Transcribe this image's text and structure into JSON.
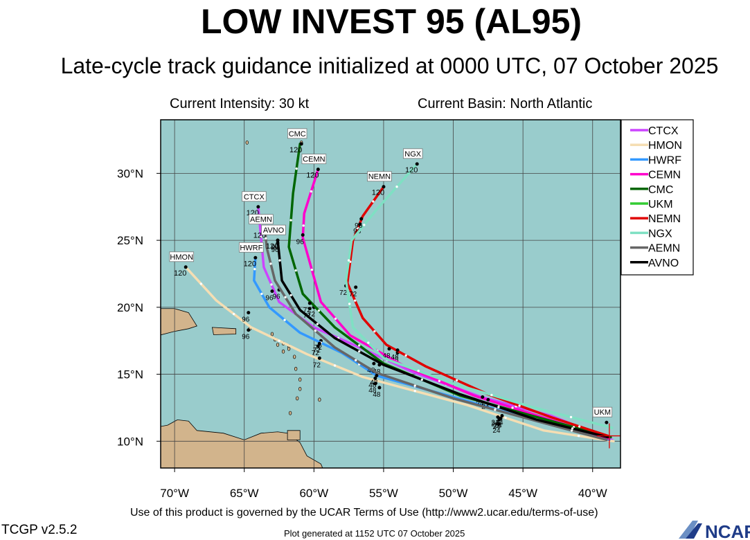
{
  "header": {
    "title": "LOW INVEST 95 (AL95)",
    "subtitle": "Late-cycle track guidance initialized at 0000 UTC, 07 October 2025",
    "intensity": "Current Intensity: 30 kt",
    "basin": "Current Basin: North Atlantic"
  },
  "footer": {
    "terms": "Use of this product is governed by the UCAR Terms of Use (http://www2.ucar.edu/terms-of-use)",
    "version": "TCGP v2.5.2",
    "generated": "Plot generated at 1152 UTC   07 October 2025",
    "logo_text": "NCAR"
  },
  "map": {
    "lon_range": [
      -71,
      -38
    ],
    "lat_range": [
      8,
      34
    ],
    "ocean_color": "#99cccc",
    "land_color": "#d2b48c",
    "lon_ticks": [
      -70,
      -65,
      -60,
      -55,
      -50,
      -45,
      -40
    ],
    "lon_labels": [
      "70°W",
      "65°W",
      "60°W",
      "55°W",
      "50°W",
      "45°W",
      "40°W"
    ],
    "lat_ticks": [
      10,
      15,
      20,
      25,
      30
    ],
    "lat_labels": [
      "10°N",
      "15°N",
      "20°N",
      "25°N",
      "30°N"
    ],
    "current_position": [
      -38.8,
      10.4
    ]
  },
  "chart_data": {
    "type": "line",
    "xlabel": "",
    "ylabel": "",
    "series": [
      {
        "name": "CTCX",
        "color": "#cc44ff",
        "points": [
          [
            -38.6,
            10.1
          ],
          [
            -43,
            11.9
          ],
          [
            -48,
            13.3
          ],
          [
            -53,
            15.2
          ],
          [
            -56.5,
            16.9
          ],
          [
            -60,
            18.5
          ],
          [
            -62.5,
            20.4
          ],
          [
            -63.6,
            23.0
          ],
          [
            -64.0,
            27.5
          ]
        ],
        "labels": [
          [
            "24",
            -46.8,
            11.9
          ],
          [
            "48",
            -54,
            16.6
          ],
          [
            "72",
            -59.5,
            17.5
          ],
          [
            "96",
            -62.5,
            21.3
          ]
        ]
      },
      {
        "name": "HMON",
        "color": "#f5deb3",
        "points": [
          [
            -38.5,
            10.0
          ],
          [
            -43.5,
            10.8
          ],
          [
            -49,
            12.7
          ],
          [
            -56.5,
            14.8
          ],
          [
            -60.5,
            16.5
          ],
          [
            -64.5,
            18.5
          ],
          [
            -67,
            20.5
          ],
          [
            -69.2,
            23.0
          ]
        ],
        "labels": [
          [
            "24",
            -46.7,
            11.3
          ],
          [
            "48",
            -55.3,
            14.0
          ],
          [
            "72",
            -59.6,
            16.2
          ],
          [
            "96",
            -64.7,
            18.3
          ]
        ]
      },
      {
        "name": "HWRF",
        "color": "#3399ff",
        "points": [
          [
            -38.8,
            10.1
          ],
          [
            -44,
            11.5
          ],
          [
            -50,
            13.3
          ],
          [
            -55.5,
            14.9
          ],
          [
            -58,
            16.6
          ],
          [
            -61,
            18.1
          ],
          [
            -63.2,
            20.0
          ],
          [
            -64.3,
            22.0
          ],
          [
            -64.2,
            23.7
          ]
        ],
        "labels": [
          [
            "24",
            -46.8,
            11.8
          ],
          [
            "48",
            -55.6,
            14.3
          ],
          [
            "72",
            -59.7,
            17.1
          ],
          [
            "96",
            -64.7,
            19.6
          ]
        ]
      },
      {
        "name": "CEMN",
        "color": "#ff00cc",
        "points": [
          [
            -38.9,
            10.2
          ],
          [
            -43,
            11.6
          ],
          [
            -48.5,
            13.4
          ],
          [
            -53.5,
            15.6
          ],
          [
            -57.4,
            17.9
          ],
          [
            -59.5,
            20.4
          ],
          [
            -60.8,
            25.2
          ],
          [
            -60.7,
            27.0
          ],
          [
            -59.7,
            30.3
          ]
        ],
        "labels": [
          [
            "24",
            -46.7,
            11.6
          ],
          [
            "48",
            -55.3,
            15.7
          ],
          [
            "72",
            -60.0,
            20.0
          ],
          [
            "96",
            -60.8,
            25.4
          ]
        ]
      },
      {
        "name": "CMC",
        "color": "#006600",
        "points": [
          [
            -38.7,
            10.3
          ],
          [
            -44,
            11.8
          ],
          [
            -49.5,
            13.4
          ],
          [
            -55,
            15.8
          ],
          [
            -58.5,
            18.5
          ],
          [
            -60.8,
            21.0
          ],
          [
            -61.8,
            24.5
          ],
          [
            -61.5,
            28.5
          ],
          [
            -61.0,
            32.2
          ]
        ],
        "labels": [
          [
            "24",
            -46.6,
            11.7
          ],
          [
            "48",
            -55.7,
            15.8
          ],
          [
            "72",
            -60.3,
            20.3
          ],
          [
            "96",
            -62.6,
            24.8
          ]
        ]
      },
      {
        "name": "UKM",
        "color": "#33cc33",
        "points": [
          [
            -39.0,
            11.4
          ]
        ],
        "labels": []
      },
      {
        "name": "NEMN",
        "color": "#e00000",
        "points": [
          [
            -38.9,
            10.4
          ],
          [
            -43,
            11.8
          ],
          [
            -47.5,
            13.5
          ],
          [
            -52,
            15.6
          ],
          [
            -54.8,
            17.2
          ],
          [
            -56.5,
            19.2
          ],
          [
            -57.6,
            21.8
          ],
          [
            -57.2,
            25.0
          ],
          [
            -56.5,
            26.8
          ],
          [
            -55.0,
            29.0
          ]
        ],
        "labels": [
          [
            "24",
            -47.9,
            13.3
          ],
          [
            "48",
            -54.6,
            16.9
          ],
          [
            "72",
            -57.7,
            21.6
          ],
          [
            "96",
            -56.7,
            26.2
          ]
        ]
      },
      {
        "name": "NGX",
        "color": "#7fe0c3",
        "points": [
          [
            -38.6,
            11.0
          ],
          [
            -44.5,
            12.6
          ],
          [
            -50,
            14.3
          ],
          [
            -55,
            16.2
          ],
          [
            -57.2,
            18.5
          ],
          [
            -57.7,
            22.0
          ],
          [
            -57.3,
            25.0
          ],
          [
            -55.5,
            27.3
          ],
          [
            -52.6,
            30.7
          ]
        ],
        "labels": [
          [
            "24",
            -47.5,
            13.1
          ],
          [
            "48",
            -54.0,
            16.8
          ],
          [
            "72",
            -57.0,
            21.5
          ],
          [
            "96",
            -56.6,
            26.6
          ]
        ]
      },
      {
        "name": "AEMN",
        "color": "#666666",
        "points": [
          [
            -39.0,
            10.1
          ],
          [
            -44,
            11.5
          ],
          [
            -50,
            13.2
          ],
          [
            -55.5,
            15.1
          ],
          [
            -58.5,
            17.0
          ],
          [
            -61.3,
            19.5
          ],
          [
            -62.8,
            22.0
          ],
          [
            -63.4,
            24.5
          ],
          [
            -63.5,
            25.8
          ]
        ],
        "labels": [
          [
            "24",
            -46.6,
            11.7
          ],
          [
            "48",
            -55.6,
            14.7
          ],
          [
            "72",
            -59.6,
            17.3
          ],
          [
            "96",
            -63.0,
            21.2
          ]
        ]
      },
      {
        "name": "AVNO",
        "color": "#000000",
        "points": [
          [
            -38.9,
            10.3
          ],
          [
            -44,
            11.6
          ],
          [
            -49.5,
            13.5
          ],
          [
            -55,
            15.7
          ],
          [
            -58.5,
            17.7
          ],
          [
            -61,
            19.8
          ],
          [
            -62.3,
            22.0
          ],
          [
            -62.6,
            25.0
          ]
        ],
        "labels": [
          [
            "24",
            -46.5,
            11.9
          ],
          [
            "48",
            -55.5,
            14.9
          ],
          [
            "72",
            -60.3,
            19.9
          ],
          [
            "96",
            -62.6,
            25.0
          ]
        ]
      }
    ],
    "end_labels": [
      {
        "text": "CMC",
        "lon": -60.9,
        "lat": 32.2,
        "hour": "120"
      },
      {
        "text": "CEMN",
        "lon": -59.7,
        "lat": 30.3,
        "hour": "120"
      },
      {
        "text": "NGX",
        "lon": -52.6,
        "lat": 30.7,
        "hour": "120"
      },
      {
        "text": "NEMN",
        "lon": -55.0,
        "lat": 29.0,
        "hour": "120"
      },
      {
        "text": "CTCX",
        "lon": -64.0,
        "lat": 27.5,
        "hour": "120"
      },
      {
        "text": "AEMN",
        "lon": -63.5,
        "lat": 25.8,
        "hour": "120"
      },
      {
        "text": "AVNO",
        "lon": -62.6,
        "lat": 25.0,
        "hour": "120"
      },
      {
        "text": "HWRF",
        "lon": -64.2,
        "lat": 23.7,
        "hour": "120"
      },
      {
        "text": "HMON",
        "lon": -69.2,
        "lat": 23.0,
        "hour": "120"
      },
      {
        "text": "UKM",
        "lon": -39.0,
        "lat": 11.4,
        "hour": ""
      }
    ]
  }
}
